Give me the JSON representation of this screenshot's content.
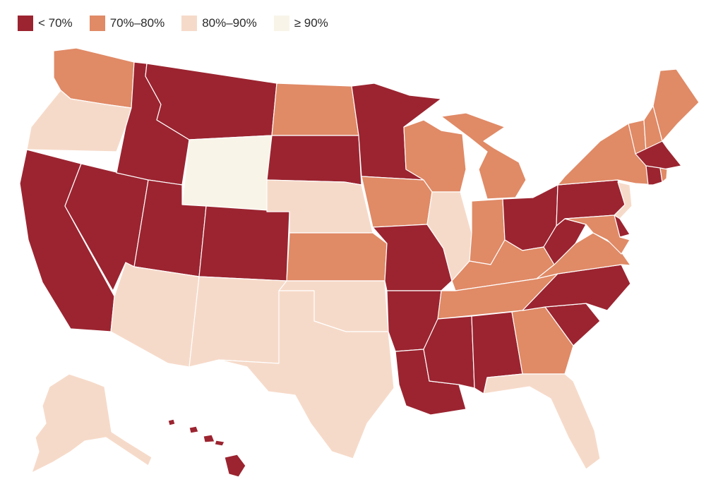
{
  "colors": {
    "lt70": "#9b2430",
    "70to80": "#e08a66",
    "80to90": "#f6dac9",
    "gte90": "#f8f5e8"
  },
  "legend": [
    {
      "key": "lt70",
      "label": "< 70%"
    },
    {
      "key": "70to80",
      "label": "70%–80%"
    },
    {
      "key": "80to90",
      "label": "80%–90%"
    },
    {
      "key": "gte90",
      "label": "≥ 90%"
    }
  ],
  "states": {
    "WA": "70to80",
    "OR": "80to90",
    "CA": "lt70",
    "NV": "lt70",
    "ID": "lt70",
    "MT": "lt70",
    "WY": "gte90",
    "UT": "lt70",
    "AZ": "80to90",
    "CO": "lt70",
    "NM": "80to90",
    "ND": "70to80",
    "SD": "lt70",
    "NE": "80to90",
    "KS": "70to80",
    "OK": "80to90",
    "TX": "80to90",
    "MN": "lt70",
    "IA": "70to80",
    "MO": "lt70",
    "AR": "lt70",
    "LA": "lt70",
    "WI": "70to80",
    "IL": "80to90",
    "MI": "70to80",
    "IN": "70to80",
    "OH": "lt70",
    "KY": "70to80",
    "TN": "70to80",
    "MS": "lt70",
    "AL": "lt70",
    "GA": "70to80",
    "FL": "80to90",
    "SC": "lt70",
    "NC": "lt70",
    "VA": "70to80",
    "WV": "lt70",
    "PA": "lt70",
    "NY": "70to80",
    "VT": "70to80",
    "NH": "70to80",
    "ME": "70to80",
    "MA": "lt70",
    "RI": "70to80",
    "CT": "lt70",
    "NJ": "80to90",
    "DE": "lt70",
    "MD": "70to80",
    "AK": "80to90",
    "HI": "lt70"
  }
}
